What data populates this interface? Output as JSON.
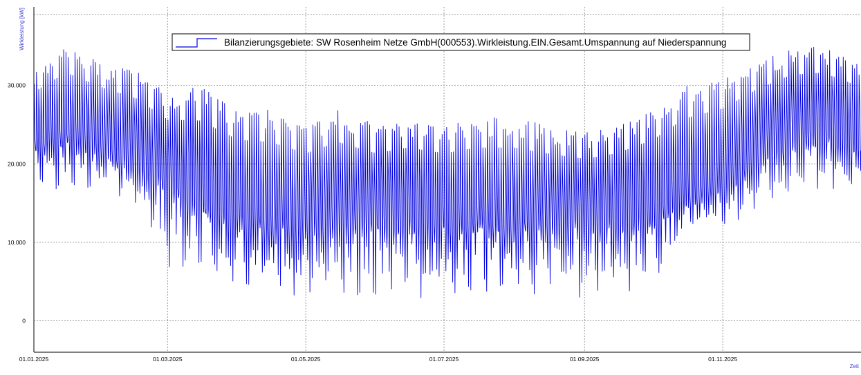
{
  "chart_data": {
    "type": "line",
    "title": "",
    "ylabel": "Wirkleistung [kW]",
    "xlabel": "Zeit",
    "xlim": [
      "2025-01-01",
      "2025-12-31"
    ],
    "ylim": [
      -4000,
      40000
    ],
    "yticks": [
      0,
      10000,
      20000,
      30000
    ],
    "ytick_labels": [
      "0",
      "10.000",
      "20.000",
      "30.000"
    ],
    "xticks": [
      "2025-01-01",
      "2025-03-01",
      "2025-05-01",
      "2025-07-01",
      "2025-09-01",
      "2025-11-01"
    ],
    "xtick_labels": [
      "01.01.2025",
      "01.03.2025",
      "01.05.2025",
      "01.07.2025",
      "01.09.2025",
      "01.11.2025"
    ],
    "grid": true,
    "legend": {
      "position": "top-center",
      "entries": [
        "Bilanzierungsgebiete: SW Rosenheim Netze GmbH(000553).Wirkleistung.EIN.Gesamt.Umspannung auf Niederspannung"
      ]
    },
    "colors": {
      "series": "#0000dd",
      "grid": "#9a9a9a",
      "axis": "#000000",
      "axis_title": "#3b3bd6"
    },
    "series": [
      {
        "name": "Bilanzierungsgebiete: SW Rosenheim Netze GmbH(000553).Wirkleistung.EIN.Gesamt.Umspannung auf Niederspannung",
        "x": [
          "2025-01-01",
          "2025-01-15",
          "2025-02-01",
          "2025-02-15",
          "2025-03-01",
          "2025-03-15",
          "2025-04-01",
          "2025-04-15",
          "2025-05-01",
          "2025-05-15",
          "2025-06-01",
          "2025-06-15",
          "2025-07-01",
          "2025-07-15",
          "2025-08-01",
          "2025-08-15",
          "2025-09-01",
          "2025-09-15",
          "2025-10-01",
          "2025-10-15",
          "2025-11-01",
          "2025-11-15",
          "2025-12-01",
          "2025-12-15",
          "2025-12-31"
        ],
        "max": [
          32000,
          35000,
          33000,
          32000,
          29000,
          30000,
          27000,
          27000,
          25000,
          27000,
          25000,
          26000,
          25000,
          26000,
          26000,
          25000,
          24000,
          25000,
          27000,
          30000,
          31000,
          33000,
          35000,
          35000,
          33000
        ],
        "min": [
          15000,
          16000,
          16000,
          14000,
          5000,
          4000,
          3000,
          2000,
          1500,
          2000,
          1500,
          2000,
          1500,
          2000,
          2000,
          2500,
          1500,
          3000,
          2000,
          11000,
          11000,
          13000,
          15000,
          16000,
          16000
        ],
        "base": [
          22000,
          23000,
          21000,
          19000,
          17000,
          14000,
          13000,
          12000,
          12000,
          12000,
          12000,
          12000,
          12000,
          12000,
          12000,
          12000,
          12000,
          12000,
          13000,
          15000,
          17000,
          20000,
          22000,
          23000,
          22000
        ]
      }
    ]
  }
}
